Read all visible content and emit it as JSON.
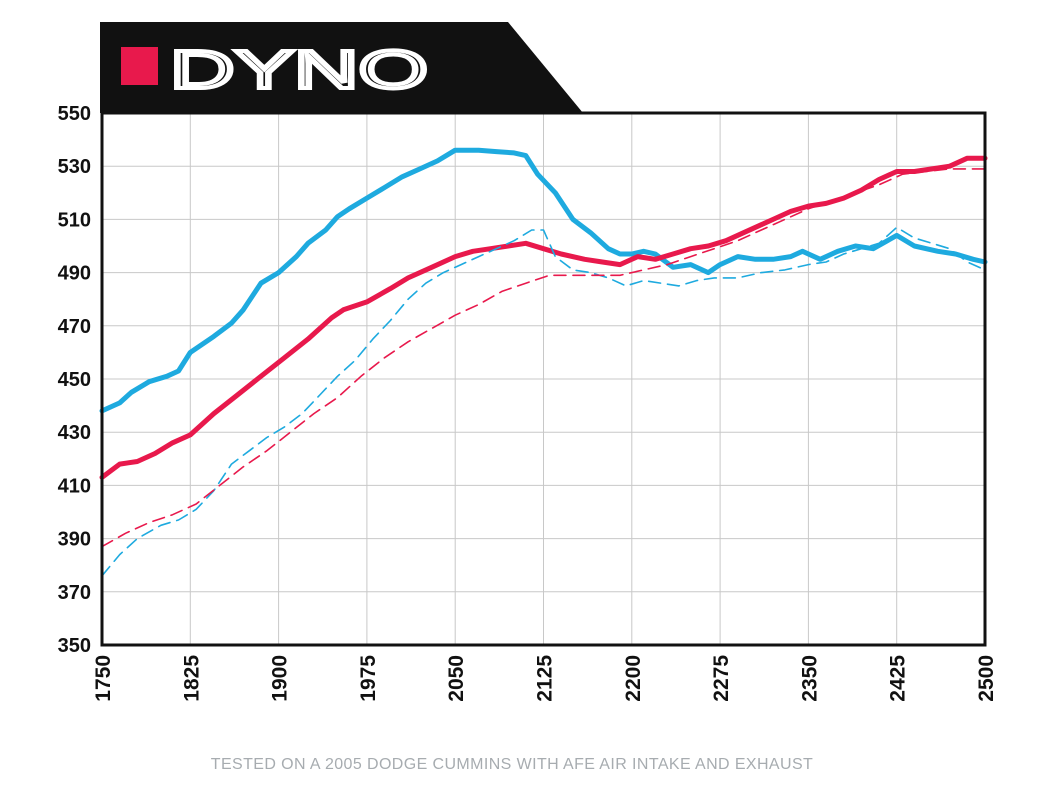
{
  "chart_data": {
    "type": "line",
    "title": "DYNO",
    "xlabel": "",
    "ylabel": "",
    "xlim": [
      1750,
      2500
    ],
    "ylim": [
      350,
      550
    ],
    "x_ticks": [
      "1750",
      "1825",
      "1900",
      "1975",
      "2050",
      "2125",
      "2200",
      "2275",
      "2350",
      "2425",
      "2500"
    ],
    "y_ticks": [
      "550",
      "530",
      "510",
      "490",
      "470",
      "450",
      "430",
      "410",
      "390",
      "370",
      "350"
    ],
    "grid": true,
    "legend": "none",
    "series": [
      {
        "color": "#1eaadf",
        "style": "solid",
        "points": [
          [
            1750,
            438
          ],
          [
            1765,
            441
          ],
          [
            1775,
            445
          ],
          [
            1790,
            449
          ],
          [
            1805,
            451
          ],
          [
            1815,
            453
          ],
          [
            1825,
            460
          ],
          [
            1845,
            466
          ],
          [
            1860,
            471
          ],
          [
            1870,
            476
          ],
          [
            1885,
            486
          ],
          [
            1900,
            490
          ],
          [
            1915,
            496
          ],
          [
            1925,
            501
          ],
          [
            1940,
            506
          ],
          [
            1950,
            511
          ],
          [
            1960,
            514
          ],
          [
            1975,
            518
          ],
          [
            1990,
            522
          ],
          [
            2005,
            526
          ],
          [
            2020,
            529
          ],
          [
            2035,
            532
          ],
          [
            2050,
            536
          ],
          [
            2070,
            536
          ],
          [
            2085,
            535.5
          ],
          [
            2100,
            535
          ],
          [
            2110,
            534
          ],
          [
            2120,
            527
          ],
          [
            2135,
            520
          ],
          [
            2150,
            510
          ],
          [
            2165,
            505
          ],
          [
            2180,
            499
          ],
          [
            2190,
            497
          ],
          [
            2200,
            497
          ],
          [
            2210,
            498
          ],
          [
            2220,
            497
          ],
          [
            2235,
            492
          ],
          [
            2250,
            493
          ],
          [
            2265,
            490
          ],
          [
            2275,
            493
          ],
          [
            2290,
            496
          ],
          [
            2305,
            495
          ],
          [
            2320,
            495
          ],
          [
            2335,
            496
          ],
          [
            2345,
            498
          ],
          [
            2360,
            495
          ],
          [
            2375,
            498
          ],
          [
            2390,
            500
          ],
          [
            2405,
            499
          ],
          [
            2425,
            504
          ],
          [
            2440,
            500
          ],
          [
            2460,
            498
          ],
          [
            2475,
            497
          ],
          [
            2490,
            495
          ],
          [
            2500,
            494
          ]
        ]
      },
      {
        "color": "#e8194c",
        "style": "solid",
        "points": [
          [
            1750,
            413
          ],
          [
            1765,
            418
          ],
          [
            1780,
            419
          ],
          [
            1795,
            422
          ],
          [
            1810,
            426
          ],
          [
            1825,
            429
          ],
          [
            1845,
            437
          ],
          [
            1865,
            444
          ],
          [
            1885,
            451
          ],
          [
            1905,
            458
          ],
          [
            1925,
            465
          ],
          [
            1945,
            473
          ],
          [
            1955,
            476
          ],
          [
            1975,
            479
          ],
          [
            1995,
            484
          ],
          [
            2010,
            488
          ],
          [
            2030,
            492
          ],
          [
            2050,
            496
          ],
          [
            2065,
            498
          ],
          [
            2080,
            499
          ],
          [
            2095,
            500
          ],
          [
            2110,
            501
          ],
          [
            2125,
            499
          ],
          [
            2140,
            497
          ],
          [
            2160,
            495
          ],
          [
            2175,
            494
          ],
          [
            2190,
            493
          ],
          [
            2205,
            496
          ],
          [
            2220,
            495
          ],
          [
            2235,
            497
          ],
          [
            2250,
            499
          ],
          [
            2265,
            500
          ],
          [
            2280,
            502
          ],
          [
            2295,
            505
          ],
          [
            2310,
            508
          ],
          [
            2320,
            510
          ],
          [
            2335,
            513
          ],
          [
            2350,
            515
          ],
          [
            2365,
            516
          ],
          [
            2380,
            518
          ],
          [
            2395,
            521
          ],
          [
            2410,
            525
          ],
          [
            2425,
            528
          ],
          [
            2440,
            528
          ],
          [
            2455,
            529
          ],
          [
            2470,
            530
          ],
          [
            2485,
            533
          ],
          [
            2500,
            533
          ]
        ]
      },
      {
        "color": "#1eaadf",
        "style": "dashed",
        "points": [
          [
            1750,
            376
          ],
          [
            1765,
            384
          ],
          [
            1780,
            390
          ],
          [
            1800,
            395
          ],
          [
            1815,
            397
          ],
          [
            1830,
            401
          ],
          [
            1845,
            408
          ],
          [
            1860,
            418
          ],
          [
            1875,
            423
          ],
          [
            1890,
            428
          ],
          [
            1905,
            432
          ],
          [
            1920,
            437
          ],
          [
            1935,
            444
          ],
          [
            1950,
            451
          ],
          [
            1965,
            457
          ],
          [
            1980,
            465
          ],
          [
            1995,
            472
          ],
          [
            2010,
            480
          ],
          [
            2025,
            486
          ],
          [
            2040,
            490
          ],
          [
            2055,
            493
          ],
          [
            2070,
            496
          ],
          [
            2085,
            499
          ],
          [
            2100,
            502
          ],
          [
            2115,
            506
          ],
          [
            2125,
            506
          ],
          [
            2135,
            496
          ],
          [
            2150,
            491
          ],
          [
            2165,
            490
          ],
          [
            2180,
            488
          ],
          [
            2195,
            485
          ],
          [
            2210,
            487
          ],
          [
            2225,
            486
          ],
          [
            2240,
            485
          ],
          [
            2255,
            487
          ],
          [
            2270,
            488
          ],
          [
            2290,
            488
          ],
          [
            2310,
            490
          ],
          [
            2330,
            491
          ],
          [
            2350,
            493
          ],
          [
            2365,
            494
          ],
          [
            2380,
            497
          ],
          [
            2395,
            499
          ],
          [
            2410,
            501
          ],
          [
            2425,
            507
          ],
          [
            2440,
            503
          ],
          [
            2455,
            501
          ],
          [
            2470,
            499
          ],
          [
            2485,
            494
          ],
          [
            2500,
            491
          ]
        ]
      },
      {
        "color": "#e8194c",
        "style": "dashed",
        "points": [
          [
            1750,
            387
          ],
          [
            1770,
            392
          ],
          [
            1790,
            396
          ],
          [
            1810,
            399
          ],
          [
            1830,
            403
          ],
          [
            1850,
            410
          ],
          [
            1870,
            417
          ],
          [
            1890,
            423
          ],
          [
            1910,
            430
          ],
          [
            1930,
            437
          ],
          [
            1950,
            443
          ],
          [
            1970,
            451
          ],
          [
            1990,
            458
          ],
          [
            2010,
            464
          ],
          [
            2030,
            469
          ],
          [
            2050,
            474
          ],
          [
            2070,
            478
          ],
          [
            2090,
            483
          ],
          [
            2110,
            486
          ],
          [
            2130,
            489
          ],
          [
            2150,
            489
          ],
          [
            2170,
            489
          ],
          [
            2190,
            489
          ],
          [
            2210,
            491
          ],
          [
            2230,
            493
          ],
          [
            2250,
            496
          ],
          [
            2270,
            499
          ],
          [
            2290,
            502
          ],
          [
            2310,
            506
          ],
          [
            2330,
            510
          ],
          [
            2350,
            514
          ],
          [
            2370,
            517
          ],
          [
            2390,
            520
          ],
          [
            2410,
            523
          ],
          [
            2430,
            527
          ],
          [
            2450,
            528
          ],
          [
            2470,
            529
          ],
          [
            2490,
            529
          ],
          [
            2500,
            529
          ]
        ]
      }
    ]
  },
  "footer": "TESTED ON A 2005 DODGE CUMMINS WITH AFE AIR INTAKE AND EXHAUST",
  "colors": {
    "banner": "#111111",
    "accent": "#e8194c",
    "grid": "#c8c8c8",
    "frame": "#111111",
    "footer_text": "#a7acb0"
  }
}
